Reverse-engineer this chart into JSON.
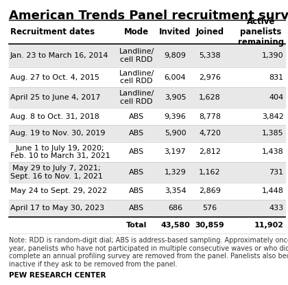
{
  "title": "American Trends Panel recruitment surveys",
  "columns": [
    "Recruitment dates",
    "Mode",
    "Invited",
    "Joined",
    "Active\npanelists\nremaining"
  ],
  "rows": [
    [
      "Jan. 23 to March 16, 2014",
      "Landline/\ncell RDD",
      "9,809",
      "5,338",
      "1,390"
    ],
    [
      "Aug. 27 to Oct. 4, 2015",
      "Landline/\ncell RDD",
      "6,004",
      "2,976",
      "831"
    ],
    [
      "April 25 to June 4, 2017",
      "Landline/\ncell RDD",
      "3,905",
      "1,628",
      "404"
    ],
    [
      "Aug. 8 to Oct. 31, 2018",
      "ABS",
      "9,396",
      "8,778",
      "3,842"
    ],
    [
      "Aug. 19 to Nov. 30, 2019",
      "ABS",
      "5,900",
      "4,720",
      "1,385"
    ],
    [
      "June 1 to July 19, 2020;\nFeb. 10 to March 31, 2021",
      "ABS",
      "3,197",
      "2,812",
      "1,438"
    ],
    [
      "May 29 to July 7, 2021;\nSept. 16 to Nov. 1, 2021",
      "ABS",
      "1,329",
      "1,162",
      "731"
    ],
    [
      "May 24 to Sept. 29, 2022",
      "ABS",
      "3,354",
      "2,869",
      "1,448"
    ],
    [
      "April 17 to May 30, 2023",
      "ABS",
      "686",
      "576",
      "433"
    ]
  ],
  "total_row": [
    "",
    "Total",
    "43,580",
    "30,859",
    "11,902"
  ],
  "note": "Note: RDD is random-digit dial; ABS is address-based sampling. Approximately once per\nyear, panelists who have not participated in multiple consecutive waves or who did not\ncomplete an annual profiling survey are removed from the panel. Panelists also become\ninactive if they ask to be removed from the panel.",
  "source": "PEW RESEARCH CENTER",
  "shaded_rows": [
    0,
    2,
    4,
    6,
    8
  ],
  "shade_color": "#e8e8e8",
  "white_color": "#ffffff",
  "bg_color": "#ffffff",
  "title_fontsize": 13,
  "header_fontsize": 8.5,
  "cell_fontsize": 8.0,
  "note_fontsize": 7.0,
  "source_fontsize": 7.5,
  "col_align": [
    "left",
    "center",
    "center",
    "center",
    "right"
  ]
}
